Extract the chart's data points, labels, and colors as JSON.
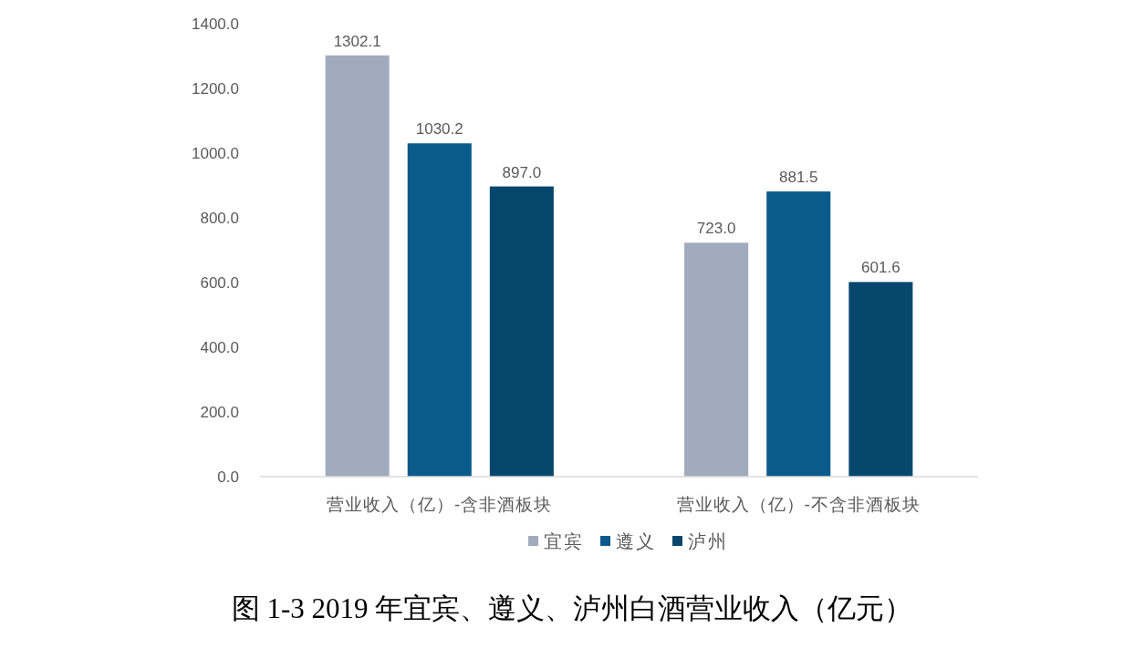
{
  "chart_data": {
    "type": "bar",
    "title": "图 1-3 2019 年宜宾、遵义、泸州白酒营业收入（亿元）",
    "categories": [
      "营业收入（亿）-含非酒板块",
      "营业收入（亿）-不含非酒板块"
    ],
    "series": [
      {
        "name": "宜宾",
        "color": "#a0abbd",
        "values": [
          1302.1,
          723.0
        ],
        "value_labels": [
          "1302.1",
          "723.0"
        ]
      },
      {
        "name": "遵义",
        "color": "#0b5a8c",
        "values": [
          1030.2,
          881.5
        ],
        "value_labels": [
          "1030.2",
          "881.5"
        ]
      },
      {
        "name": "泸州",
        "color": "#07476e",
        "values": [
          897.0,
          601.6
        ],
        "value_labels": [
          "897.0",
          "601.6"
        ]
      }
    ],
    "ylim": [
      0,
      1400
    ],
    "yticks": [
      {
        "value": 0,
        "label": "0.0"
      },
      {
        "value": 200,
        "label": "200.0"
      },
      {
        "value": 400,
        "label": "400.0"
      },
      {
        "value": 600,
        "label": "600.0"
      },
      {
        "value": 800,
        "label": "800.0"
      },
      {
        "value": 1000,
        "label": "1000.0"
      },
      {
        "value": 1200,
        "label": "1200.0"
      },
      {
        "value": 1400,
        "label": "1400.0"
      }
    ],
    "legend": "bottom"
  }
}
